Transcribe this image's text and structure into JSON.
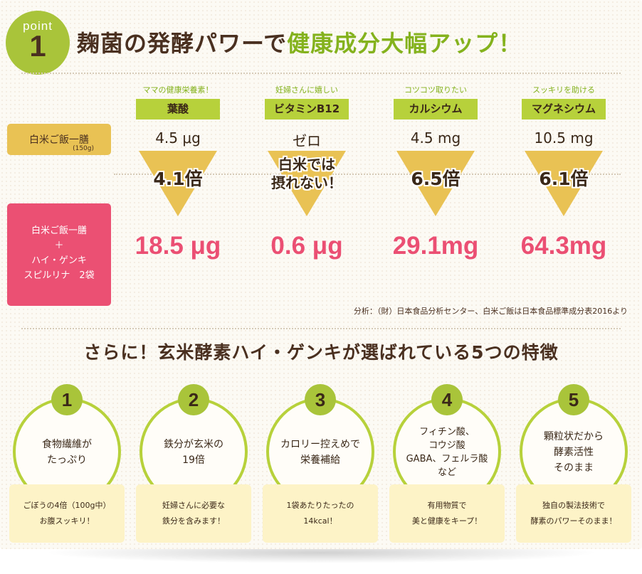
{
  "header": {
    "point_word": "point",
    "point_number": "1",
    "title_prefix": "麹菌の発酵パワーで",
    "title_highlight": "健康成分大幅アップ！"
  },
  "rows": {
    "rice_label": "白米ご飯一膳",
    "rice_weight": "(150g)",
    "combo_lines": [
      "白米ご飯一膳",
      "＋",
      "ハイ・ゲンキ",
      "スピルリナ　2袋"
    ]
  },
  "nutrients": [
    {
      "caption": "ママの健康栄養素！",
      "name": "葉酸",
      "base": "4.5 μg",
      "multiplier": "4.1倍",
      "result": "18.5 μg"
    },
    {
      "caption": "妊婦さんに嬉しい",
      "name": "ビタミンB12",
      "base": "ゼロ",
      "multiplier_lines": [
        "白米では",
        "摂れない！"
      ],
      "result": "0.6 μg"
    },
    {
      "caption": "コツコツ取りたい",
      "name": "カルシウム",
      "base": "4.5 mg",
      "multiplier": "6.5倍",
      "result": "29.1mg"
    },
    {
      "caption": "スッキリを助ける",
      "name": "マグネシウム",
      "base": "10.5 mg",
      "multiplier": "6.1倍",
      "result": "64.3mg"
    }
  ],
  "note": "分析：（財）日本食品分析センター、白米ご飯は日本食品標準成分表2016より",
  "subheading": "さらに！玄米酵素ハイ・ゲンキが選ばれている5つの特徴",
  "features": [
    {
      "number": "1",
      "title": [
        "食物繊維が",
        "たっぷり"
      ],
      "detail": [
        "ごぼうの4倍（100g中）",
        "お腹スッキリ！"
      ]
    },
    {
      "number": "2",
      "title": [
        "鉄分が玄米の",
        "19倍"
      ],
      "detail": [
        "妊婦さんに必要な",
        "鉄分を含みます！"
      ]
    },
    {
      "number": "3",
      "title": [
        "カロリー控えめで",
        "栄養補給"
      ],
      "detail": [
        "1袋あたりたったの",
        "14kcal！"
      ]
    },
    {
      "number": "4",
      "title": [
        "フィチン酸、",
        "コウジ酸",
        "GABA、フェルラ酸",
        "など"
      ],
      "detail": [
        "有用物質で",
        "美と健康をキープ！"
      ]
    },
    {
      "number": "5",
      "title": [
        "顆粒状だから",
        "酵素活性",
        "そのまま"
      ],
      "detail": [
        "独自の製法技術で",
        "酵素のパワーそのまま！"
      ]
    }
  ],
  "colors": {
    "accent_green": "#a9c43a",
    "title_green": "#84b21d",
    "result_pink": "#eb4f73",
    "rice_label_yellow": "#e9c254",
    "arrow_yellow": "#e9c254",
    "detail_box": "#fdf3c7"
  }
}
